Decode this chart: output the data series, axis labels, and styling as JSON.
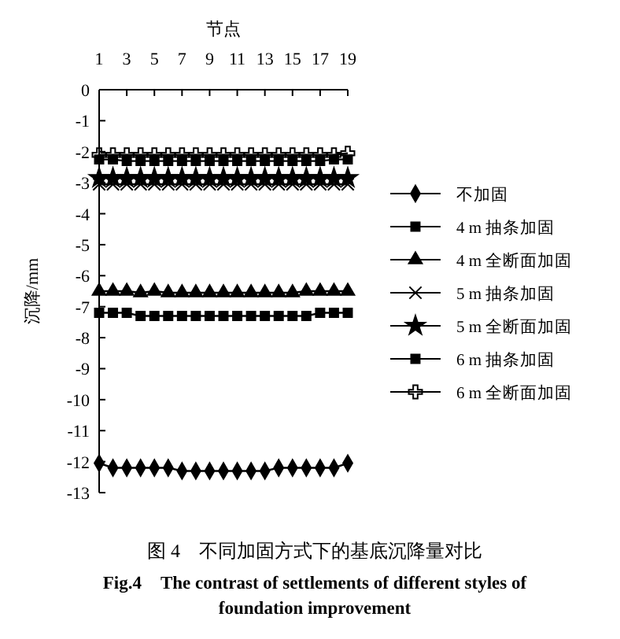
{
  "chart_data": {
    "type": "line",
    "title": "图 4　不同加固方式下的基底沉降量对比",
    "subtitle": "Fig.4　The contrast of settlements of different styles of foundation improvement",
    "xlabel": "节点",
    "ylabel": "沉降/mm",
    "x": [
      1,
      2,
      3,
      4,
      5,
      6,
      7,
      8,
      9,
      10,
      11,
      12,
      13,
      14,
      15,
      16,
      17,
      18,
      19
    ],
    "xlim": [
      1,
      19
    ],
    "xticks": [
      1,
      3,
      5,
      7,
      9,
      11,
      13,
      15,
      17,
      19
    ],
    "ylim": [
      -13,
      0
    ],
    "yticks": [
      0,
      -1,
      -2,
      -3,
      -4,
      -5,
      -6,
      -7,
      -8,
      -9,
      -10,
      -11,
      -12,
      -13
    ],
    "grid": false,
    "legend": "right",
    "line_style": "solid",
    "series": [
      {
        "name": "不加固",
        "color": "#000000",
        "marker": "diamond",
        "values": [
          -12.05,
          -12.2,
          -12.2,
          -12.2,
          -12.2,
          -12.2,
          -12.3,
          -12.3,
          -12.3,
          -12.3,
          -12.3,
          -12.3,
          -12.3,
          -12.2,
          -12.2,
          -12.2,
          -12.2,
          -12.2,
          -12.05
        ]
      },
      {
        "name": "4 m 抽条加固",
        "color": "#000000",
        "marker": "square",
        "values": [
          -7.2,
          -7.2,
          -7.2,
          -7.3,
          -7.3,
          -7.3,
          -7.3,
          -7.3,
          -7.3,
          -7.3,
          -7.3,
          -7.3,
          -7.3,
          -7.3,
          -7.3,
          -7.3,
          -7.2,
          -7.2,
          -7.2
        ]
      },
      {
        "name": "4 m 全断面加固",
        "color": "#000000",
        "marker": "triangle",
        "values": [
          -6.5,
          -6.5,
          -6.5,
          -6.55,
          -6.5,
          -6.55,
          -6.55,
          -6.55,
          -6.55,
          -6.55,
          -6.55,
          -6.55,
          -6.55,
          -6.55,
          -6.55,
          -6.5,
          -6.5,
          -6.5,
          -6.5
        ]
      },
      {
        "name": "5 m 抽条加固",
        "color": "#000000",
        "marker": "x",
        "values": [
          -3.05,
          -3.05,
          -3.05,
          -3.05,
          -3.05,
          -3.05,
          -3.05,
          -3.05,
          -3.05,
          -3.05,
          -3.05,
          -3.05,
          -3.05,
          -3.05,
          -3.05,
          -3.05,
          -3.05,
          -3.05,
          -3.05
        ]
      },
      {
        "name": "5 m 全断面加固",
        "color": "#000000",
        "marker": "star",
        "values": [
          -2.85,
          -2.85,
          -2.85,
          -2.85,
          -2.85,
          -2.85,
          -2.85,
          -2.85,
          -2.85,
          -2.85,
          -2.85,
          -2.85,
          -2.85,
          -2.85,
          -2.85,
          -2.85,
          -2.85,
          -2.85,
          -2.85
        ]
      },
      {
        "name": "6 m 抽条加固",
        "color": "#000000",
        "marker": "square",
        "values": [
          -2.25,
          -2.25,
          -2.3,
          -2.3,
          -2.3,
          -2.3,
          -2.3,
          -2.3,
          -2.3,
          -2.3,
          -2.3,
          -2.3,
          -2.3,
          -2.3,
          -2.3,
          -2.3,
          -2.3,
          -2.25,
          -2.25
        ]
      },
      {
        "name": "6 m 全断面加固",
        "color": "#000000",
        "marker": "cross",
        "values": [
          -2.1,
          -2.1,
          -2.1,
          -2.1,
          -2.1,
          -2.1,
          -2.1,
          -2.1,
          -2.1,
          -2.1,
          -2.1,
          -2.1,
          -2.1,
          -2.1,
          -2.1,
          -2.1,
          -2.1,
          -2.1,
          -2.05
        ]
      }
    ]
  }
}
